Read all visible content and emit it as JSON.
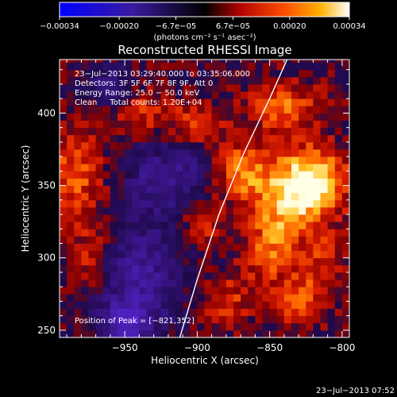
{
  "colorbar": {
    "ticks": [
      -0.00034,
      -0.0002,
      -6.7e-05,
      6.7e-05,
      0.0002,
      0.00034
    ],
    "tick_labels": [
      "−0.00034",
      "−0.00020",
      "−6.7e−05",
      "6.7e−05",
      "0.00020",
      "0.00034"
    ],
    "range": [
      -0.00034,
      0.00034
    ],
    "unit_label": "(photons cm⁻² s⁻¹ asec⁻²)"
  },
  "chart_data": {
    "type": "heatmap",
    "title": "Reconstructed RHESSI Image",
    "xlabel": "Heliocentric X (arcsec)",
    "ylabel": "Heliocentric Y (arcsec)",
    "xlim": [
      -995,
      -795
    ],
    "ylim": [
      245,
      437
    ],
    "xticks": [
      -950,
      -900,
      -850,
      -800
    ],
    "xtick_labels": [
      "−950",
      "−900",
      "−850",
      "−800"
    ],
    "yticks": [
      250,
      300,
      350,
      400
    ],
    "ytick_labels": [
      "250",
      "300",
      "350",
      "400"
    ],
    "peak_position": [
      -821,
      352
    ],
    "peak_value": 0.00034,
    "limb": [
      [
        -912,
        245
      ],
      [
        -900,
        285
      ],
      [
        -885,
        330
      ],
      [
        -868,
        372
      ],
      [
        -850,
        410
      ],
      [
        -838,
        437
      ]
    ],
    "blobs": [
      {
        "x": -821,
        "y": 352,
        "sx": 16,
        "sy": 16,
        "a": 1.0
      },
      {
        "x": -843,
        "y": 330,
        "sx": 14,
        "sy": 22,
        "a": 0.6
      },
      {
        "x": -868,
        "y": 360,
        "sx": 12,
        "sy": 14,
        "a": 0.55
      },
      {
        "x": -840,
        "y": 404,
        "sx": 16,
        "sy": 12,
        "a": 0.5
      },
      {
        "x": -900,
        "y": 392,
        "sx": 12,
        "sy": 10,
        "a": 0.45
      },
      {
        "x": -938,
        "y": 400,
        "sx": 14,
        "sy": 12,
        "a": 0.35
      },
      {
        "x": -985,
        "y": 358,
        "sx": 14,
        "sy": 24,
        "a": 0.45
      },
      {
        "x": -973,
        "y": 300,
        "sx": 12,
        "sy": 16,
        "a": 0.3
      },
      {
        "x": -897,
        "y": 323,
        "sx": 8,
        "sy": 8,
        "a": 0.42
      },
      {
        "x": -880,
        "y": 270,
        "sx": 12,
        "sy": 12,
        "a": 0.35
      },
      {
        "x": -830,
        "y": 272,
        "sx": 14,
        "sy": 12,
        "a": 0.45
      },
      {
        "x": -812,
        "y": 300,
        "sx": 10,
        "sy": 14,
        "a": 0.3
      },
      {
        "x": -855,
        "y": 300,
        "sx": 10,
        "sy": 12,
        "a": 0.3
      },
      {
        "x": -940,
        "y": 285,
        "sx": 20,
        "sy": 25,
        "a": -0.6
      },
      {
        "x": -950,
        "y": 255,
        "sx": 12,
        "sy": 10,
        "a": -0.7
      },
      {
        "x": -930,
        "y": 355,
        "sx": 16,
        "sy": 20,
        "a": -0.45
      },
      {
        "x": -905,
        "y": 360,
        "sx": 10,
        "sy": 12,
        "a": -0.3
      },
      {
        "x": -960,
        "y": 420,
        "sx": 12,
        "sy": 10,
        "a": -0.35
      }
    ],
    "info_lines": [
      "23−Jul−2013 03:29:40.000 to 03:35:06.000",
      "Detectors: 3F 5F 6F 7F 8F 9F, Att 0",
      "Energy Range: 25.0 − 50.0 keV",
      "Clean     Total counts: 1.20E+04"
    ],
    "peak_text": "Position of Peak = [−821,352]"
  },
  "footer_timestamp": "23−Jul−2013 07:52"
}
